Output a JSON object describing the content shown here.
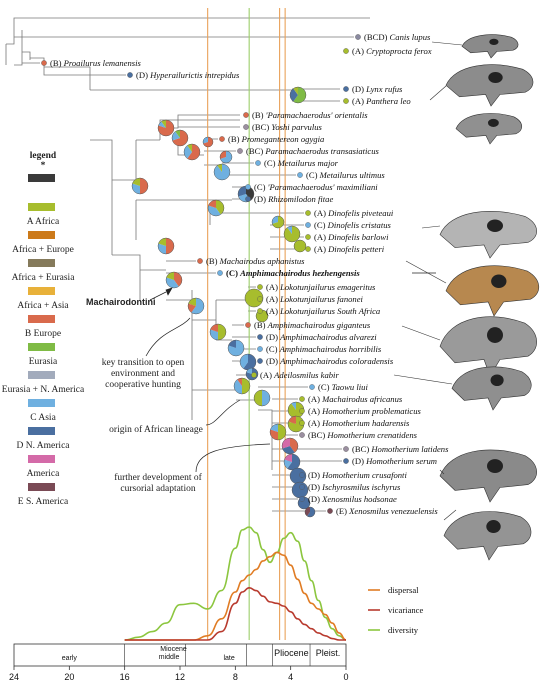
{
  "taxa": [
    {
      "code": "(BCD)",
      "name": "Canis lupus",
      "style": "italic"
    },
    {
      "code": "(A)",
      "name": "Cryptoprocta ferox",
      "style": "italic"
    },
    {
      "code": "(B)",
      "name": "Proailurus lemanensis",
      "style": "italic"
    },
    {
      "code": "(D)",
      "name": "Hyperailurictis intrepidus",
      "style": "italic"
    },
    {
      "code": "(D)",
      "name": "Lynx rufus",
      "style": "italic"
    },
    {
      "code": "(A)",
      "name": "Panthera leo",
      "style": "italic"
    },
    {
      "code": "(B)",
      "name": "'Paramachaerodus' orientalis",
      "style": "italic"
    },
    {
      "code": "(BC)",
      "name": "Yoshi parvulus",
      "style": "italic"
    },
    {
      "code": "(B)",
      "name": "Promegantereon ogygia",
      "style": "italic"
    },
    {
      "code": "(BC)",
      "name": "Paramachaerodus transasiaticus",
      "style": "italic"
    },
    {
      "code": "(C)",
      "name": "Metailurus major",
      "style": "italic"
    },
    {
      "code": "(C)",
      "name": "Metailurus ultimus",
      "style": "italic"
    },
    {
      "code": "(C)",
      "name": "'Paramachaerodus' maximiliani",
      "style": "italic"
    },
    {
      "code": "(D)",
      "name": "Rhizomilodon fitae",
      "style": "italic"
    },
    {
      "code": "(A)",
      "name": "Dinofelis piveteaui",
      "style": "italic"
    },
    {
      "code": "(C)",
      "name": "Dinofelis cristatus",
      "style": "italic"
    },
    {
      "code": "(A)",
      "name": "Dinofelis barlowi",
      "style": "italic"
    },
    {
      "code": "(A)",
      "name": "Dinofelis petteri",
      "style": "italic"
    },
    {
      "code": "(B)",
      "name": "Machairodus aphanistus",
      "style": "italic"
    },
    {
      "code": "(C)",
      "name": "Amphimachairodus hezhengensis",
      "style": "bold"
    },
    {
      "code": "(A)",
      "name": "Lokotunjailurus emageritus",
      "style": "italic"
    },
    {
      "code": "(A)",
      "name": "Lokotunjailurus fanonei",
      "style": "italic"
    },
    {
      "code": "(A)",
      "name": "Lokotunjailurus South Africa",
      "style": "mixed"
    },
    {
      "code": "(B)",
      "name": "Amphimachairodus giganteus",
      "style": "italic"
    },
    {
      "code": "(D)",
      "name": "Amphimachairodus alvarezi",
      "style": "italic"
    },
    {
      "code": "(C)",
      "name": "Amphimachairodus horribilis",
      "style": "italic"
    },
    {
      "code": "(D)",
      "name": "Amphimachairodus coloradensis",
      "style": "italic"
    },
    {
      "code": "(A)",
      "name": "Adeilosmilus kabir",
      "style": "italic"
    },
    {
      "code": "(C)",
      "name": "Taowu liui",
      "style": "italic"
    },
    {
      "code": "(A)",
      "name": "Machairodus africanus",
      "style": "italic"
    },
    {
      "code": "(A)",
      "name": "Homotherium problematicus",
      "style": "italic"
    },
    {
      "code": "(A)",
      "name": "Homotherium hadarensis",
      "style": "italic"
    },
    {
      "code": "(BC)",
      "name": "Homotherium crenatidens",
      "style": "italic"
    },
    {
      "code": "(BC)",
      "name": "Homotherium latidens",
      "style": "italic"
    },
    {
      "code": "(D)",
      "name": "Homotherium serum",
      "style": "italic"
    },
    {
      "code": "(D)",
      "name": "Homotherium crusafonti",
      "style": "italic"
    },
    {
      "code": "(D)",
      "name": "Ischyrosmilus ischyrus",
      "style": "italic"
    },
    {
      "code": "(D)",
      "name": "Xenosmilus hodsonae",
      "style": "italic"
    },
    {
      "code": "(E)",
      "name": "Xenosmilus venezuelensis",
      "style": "italic"
    }
  ],
  "legend": {
    "title": "legend",
    "star": "*",
    "items": [
      {
        "label": "",
        "color": "#3a3a3a"
      },
      {
        "label": "A Africa",
        "color": "#a7bd2d"
      },
      {
        "label": "Africa + Europe",
        "color": "#cc7a1a"
      },
      {
        "label": "Africa + Eurasia",
        "color": "#857a5b"
      },
      {
        "label": "Africa + Asia",
        "color": "#e8b13a"
      },
      {
        "label": "B Europe",
        "color": "#d96a4c"
      },
      {
        "label": "Eurasia",
        "color": "#7fbb45"
      },
      {
        "label": "Eurasia + N. America",
        "color": "#a2abbc"
      },
      {
        "label": "C Asia",
        "color": "#6fb0e0"
      },
      {
        "label": "D N. America",
        "color": "#4a6fa0"
      },
      {
        "label": "America",
        "color": "#d46aa8"
      },
      {
        "label": "E S. America",
        "color": "#7a4a55"
      }
    ]
  },
  "annotations": {
    "clade": "Machairodontini",
    "transition": "key transition to open environment and cooperative hunting",
    "african": "origin of African lineage",
    "cursorial": "further development of cursorial adaptation"
  },
  "lines_legend": [
    {
      "label": "dispersal",
      "color": "#e07c24"
    },
    {
      "label": "vicariance",
      "color": "#b83a2e"
    },
    {
      "label": "diversity",
      "color": "#8cc63f"
    }
  ],
  "axis": {
    "ticks": [
      "24",
      "20",
      "16",
      "12",
      "8",
      "4",
      "0"
    ],
    "tick_values": [
      24,
      20,
      16,
      12,
      8,
      4,
      0
    ],
    "epoch_labels": [
      "Miocene",
      "Pliocene",
      "Pleist."
    ],
    "sub_labels": [
      "early",
      "middle",
      "late"
    ]
  },
  "chart_data": {
    "type": "line",
    "x_unit": "Ma",
    "xlim": [
      24,
      0
    ],
    "x": [
      16,
      15,
      14,
      13,
      12,
      11,
      10,
      9,
      8,
      7.5,
      7,
      6.5,
      6,
      5.5,
      5,
      4.5,
      4,
      3.5,
      3,
      2.5,
      2,
      1.5,
      1,
      0.5,
      0
    ],
    "series": [
      {
        "name": "diversity",
        "color": "#8cc63f",
        "values": [
          0,
          0.2,
          0.6,
          1.2,
          2.5,
          2.6,
          2.2,
          3.5,
          6.5,
          7.8,
          8.0,
          7.6,
          6.4,
          5.5,
          6.2,
          7.2,
          7.6,
          7.0,
          5.6,
          4.2,
          2.8,
          1.6,
          0.8,
          0.3,
          0
        ]
      },
      {
        "name": "dispersal",
        "color": "#e07c24",
        "values": [
          0,
          0,
          0,
          0,
          0,
          0,
          0.3,
          1.5,
          3.4,
          4.2,
          4.6,
          5.0,
          5.6,
          5.9,
          6.2,
          6.0,
          5.3,
          4.3,
          3.3,
          2.6,
          2.2,
          1.8,
          1.2,
          0.5,
          0
        ]
      },
      {
        "name": "vicariance",
        "color": "#b83a2e",
        "values": [
          0,
          0,
          0,
          0,
          0,
          0,
          0,
          0.6,
          2.6,
          3.4,
          3.7,
          3.5,
          3.1,
          2.7,
          2.6,
          2.4,
          2.0,
          1.5,
          1.1,
          0.8,
          0.5,
          0.3,
          0.1,
          0,
          0
        ]
      }
    ],
    "vlines": [
      {
        "x": 10,
        "color": "#e9a25a"
      },
      {
        "x": 7,
        "color": "#9ccf6a"
      },
      {
        "x": 4.8,
        "color": "#e9a25a"
      }
    ]
  }
}
